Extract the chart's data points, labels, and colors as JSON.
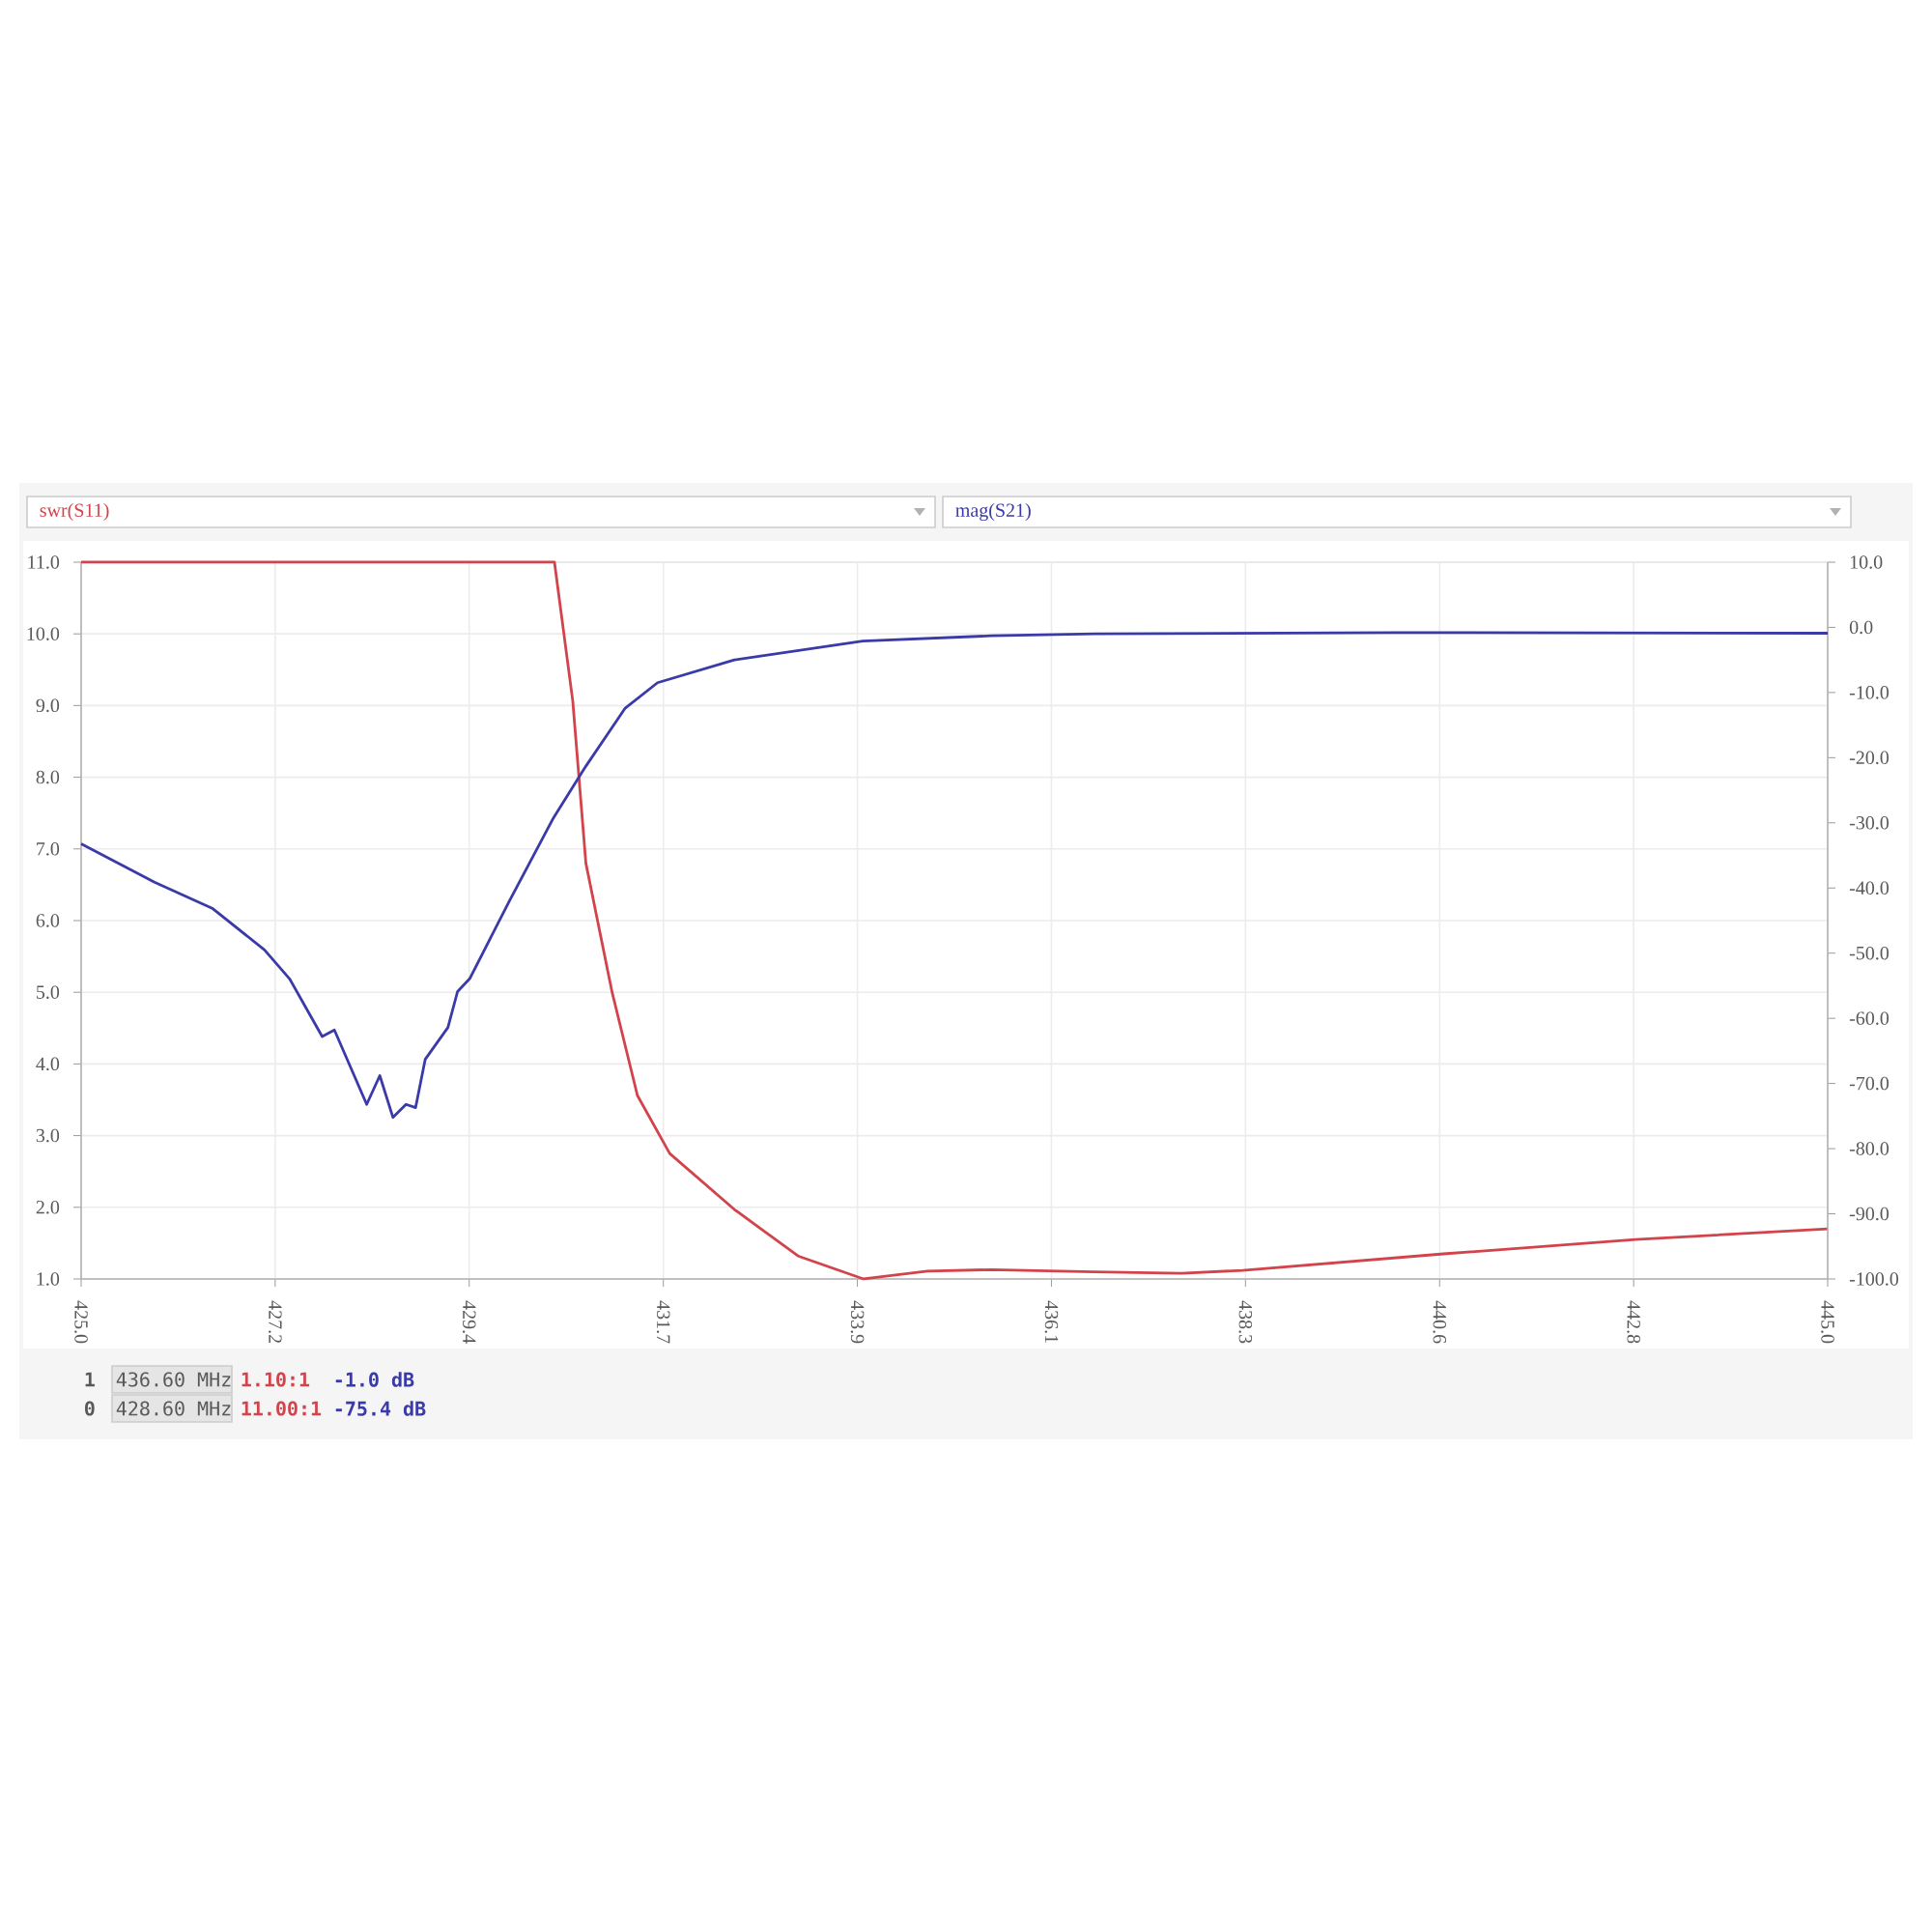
{
  "chart_data": {
    "type": "line",
    "xlim": [
      425.0,
      445.0
    ],
    "xticks": [
      {
        "value": 425.0,
        "label": "425.0"
      },
      {
        "value": 427.222,
        "label": "427.2"
      },
      {
        "value": 429.444,
        "label": "429.4"
      },
      {
        "value": 431.667,
        "label": "431.7"
      },
      {
        "value": 433.889,
        "label": "433.9"
      },
      {
        "value": 436.111,
        "label": "436.1"
      },
      {
        "value": 438.333,
        "label": "438.3"
      },
      {
        "value": 440.556,
        "label": "440.6"
      },
      {
        "value": 442.778,
        "label": "442.8"
      },
      {
        "value": 445.0,
        "label": "445.0"
      }
    ],
    "ylim": [
      1.0,
      11.0
    ],
    "yticks": [
      {
        "value": 1,
        "label": "1.0"
      },
      {
        "value": 2,
        "label": "2.0"
      },
      {
        "value": 3,
        "label": "3.0"
      },
      {
        "value": 4,
        "label": "4.0"
      },
      {
        "value": 5,
        "label": "5.0"
      },
      {
        "value": 6,
        "label": "6.0"
      },
      {
        "value": 7,
        "label": "7.0"
      },
      {
        "value": 8,
        "label": "8.0"
      },
      {
        "value": 9,
        "label": "9.0"
      },
      {
        "value": 10,
        "label": "10.0"
      },
      {
        "value": 11,
        "label": "11.0"
      }
    ],
    "y2lim": [
      -100.0,
      10.0
    ],
    "y2ticks": [
      {
        "value": -100,
        "label": "-100.0"
      },
      {
        "value": -90,
        "label": "-90.0"
      },
      {
        "value": -80,
        "label": "-80.0"
      },
      {
        "value": -70,
        "label": "-70.0"
      },
      {
        "value": -60,
        "label": "-60.0"
      },
      {
        "value": -50,
        "label": "-50.0"
      },
      {
        "value": -40,
        "label": "-40.0"
      },
      {
        "value": -30,
        "label": "-30.0"
      },
      {
        "value": -20,
        "label": "-20.0"
      },
      {
        "value": -10,
        "label": "-10.0"
      },
      {
        "value": 0,
        "label": "0.0"
      },
      {
        "value": 10,
        "label": "10.0"
      }
    ],
    "grid": true,
    "legend": "top",
    "marker": "none",
    "line_style": "solid",
    "series": [
      {
        "name": "swr(S11)",
        "color": "#d2434b",
        "axis": "y",
        "x": [
          425.0,
          430.42,
          430.63,
          430.78,
          431.08,
          431.37,
          431.74,
          432.48,
          433.21,
          433.96,
          434.69,
          435.42,
          436.6,
          437.6,
          438.3,
          440.6,
          442.8,
          445.0
        ],
        "values": [
          11.0,
          11.0,
          9.06,
          6.8,
          5.0,
          3.56,
          2.75,
          1.97,
          1.32,
          1.0,
          1.11,
          1.13,
          1.1,
          1.08,
          1.12,
          1.35,
          1.55,
          1.7
        ]
      },
      {
        "name": "mag(S21)",
        "color": "#3a3aa8",
        "axis": "y2",
        "x": [
          425.0,
          425.84,
          426.5,
          427.1,
          427.39,
          427.76,
          427.9,
          428.27,
          428.42,
          428.57,
          428.72,
          428.83,
          428.94,
          429.2,
          429.31,
          429.45,
          429.9,
          430.41,
          430.78,
          431.23,
          431.6,
          432.48,
          433.95,
          435.42,
          436.6,
          440.0,
          445.0
        ],
        "values": [
          -33.2,
          -39.1,
          -43.1,
          -49.5,
          -54.0,
          -62.8,
          -61.8,
          -73.2,
          -68.8,
          -75.2,
          -73.2,
          -73.7,
          -66.3,
          -61.4,
          -55.9,
          -53.9,
          -42.1,
          -29.2,
          -21.3,
          -12.4,
          -8.5,
          -5.0,
          -2.1,
          -1.3,
          -1.0,
          -0.8,
          -0.9
        ]
      }
    ],
    "annotations": [
      "1",
      "436.60 MHz",
      "1.10:1",
      "-1.0 dB",
      "0",
      "428.60 MHz",
      "11.00:1",
      "-75.4 dB"
    ]
  }
}
